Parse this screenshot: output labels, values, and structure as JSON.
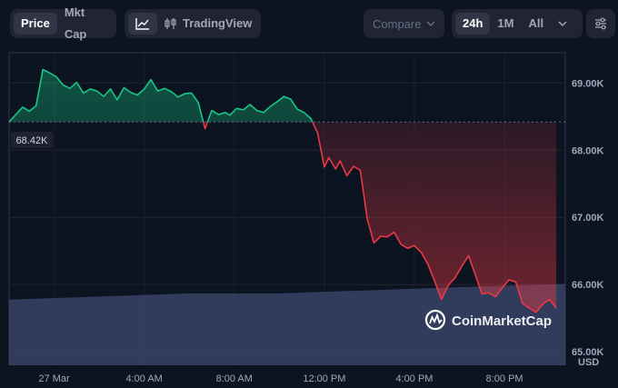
{
  "toolbar": {
    "price_label": "Price",
    "mktcap_label": "Mkt Cap",
    "tradingview_label": "TradingView",
    "compare_label": "Compare",
    "range_24h": "24h",
    "range_1m": "1M",
    "range_all": "All"
  },
  "colors": {
    "background": "#0d1421",
    "up": "#16c784",
    "down": "#ea3943",
    "volume": "#3d4a70"
  },
  "watermark": "CoinMarketCap",
  "current_price_tag": "68.42K",
  "chart_data": {
    "type": "line",
    "title": "",
    "xlabel": "",
    "ylabel": "USD",
    "ylim": [
      64800,
      69450
    ],
    "baseline": 68420,
    "y_ticks": [
      65000,
      66000,
      67000,
      68000,
      69000
    ],
    "y_tick_labels": [
      "65.00K",
      "66.00K",
      "67.00K",
      "68.00K",
      "69.00K"
    ],
    "x_range": [
      -2,
      22.7
    ],
    "x_ticks": [
      0,
      4,
      8,
      12,
      16,
      20
    ],
    "x_tick_labels": [
      "27 Mar",
      "4:00 AM",
      "8:00 AM",
      "12:00 PM",
      "4:00 PM",
      "8:00 PM"
    ],
    "x_unit": "hour of 27 Mar",
    "grid": true,
    "series": [
      {
        "x": [
          -2,
          -1.4,
          -1.1,
          -0.8,
          -0.5,
          -0.2,
          0.1,
          0.4,
          0.7,
          1.0,
          1.3,
          1.6,
          1.9,
          2.2,
          2.5,
          2.8,
          3.1,
          3.4,
          3.7,
          4.0,
          4.3,
          4.6,
          4.9,
          5.2,
          5.5,
          5.8,
          6.1,
          6.4,
          6.7,
          7.0,
          7.3,
          7.6,
          7.8,
          8.1,
          8.4,
          8.7,
          9.0,
          9.3,
          9.6,
          9.9,
          10.2,
          10.5,
          10.8,
          11.1,
          11.4,
          11.7,
          12.0,
          12.2,
          12.5,
          12.7,
          13.0,
          13.3,
          13.6,
          13.9,
          14.2,
          14.5,
          14.8,
          15.1,
          15.4,
          15.7,
          16.0,
          16.3,
          16.6,
          16.9,
          17.2,
          17.5,
          17.8,
          18.1,
          18.4,
          18.7,
          19.0,
          19.3,
          19.6,
          19.9,
          20.2,
          20.5,
          20.8,
          21.1,
          21.4,
          21.7,
          22.0,
          22.3
        ],
        "y": [
          68420,
          68640,
          68580,
          68660,
          69200,
          69150,
          69090,
          68970,
          68920,
          69010,
          68850,
          68910,
          68880,
          68800,
          68910,
          68750,
          68930,
          68860,
          68820,
          68910,
          69050,
          68880,
          68920,
          68870,
          68790,
          68840,
          68850,
          68710,
          68320,
          68590,
          68530,
          68560,
          68520,
          68620,
          68600,
          68680,
          68590,
          68560,
          68650,
          68720,
          68800,
          68760,
          68610,
          68560,
          68470,
          68260,
          67750,
          67890,
          67720,
          67840,
          67620,
          67760,
          67700,
          66980,
          66620,
          66720,
          66710,
          66780,
          66600,
          66540,
          66580,
          66480,
          66300,
          66050,
          65780,
          65990,
          66100,
          66270,
          66430,
          66150,
          65860,
          65880,
          65820,
          65950,
          66070,
          66040,
          65720,
          65650,
          65590,
          65710,
          65780,
          65650
        ]
      }
    ],
    "volume": {
      "x": [
        -2,
        2,
        6,
        10,
        14,
        18,
        22.7
      ],
      "values": [
        0.21,
        0.22,
        0.23,
        0.23,
        0.24,
        0.25,
        0.26
      ]
    }
  }
}
